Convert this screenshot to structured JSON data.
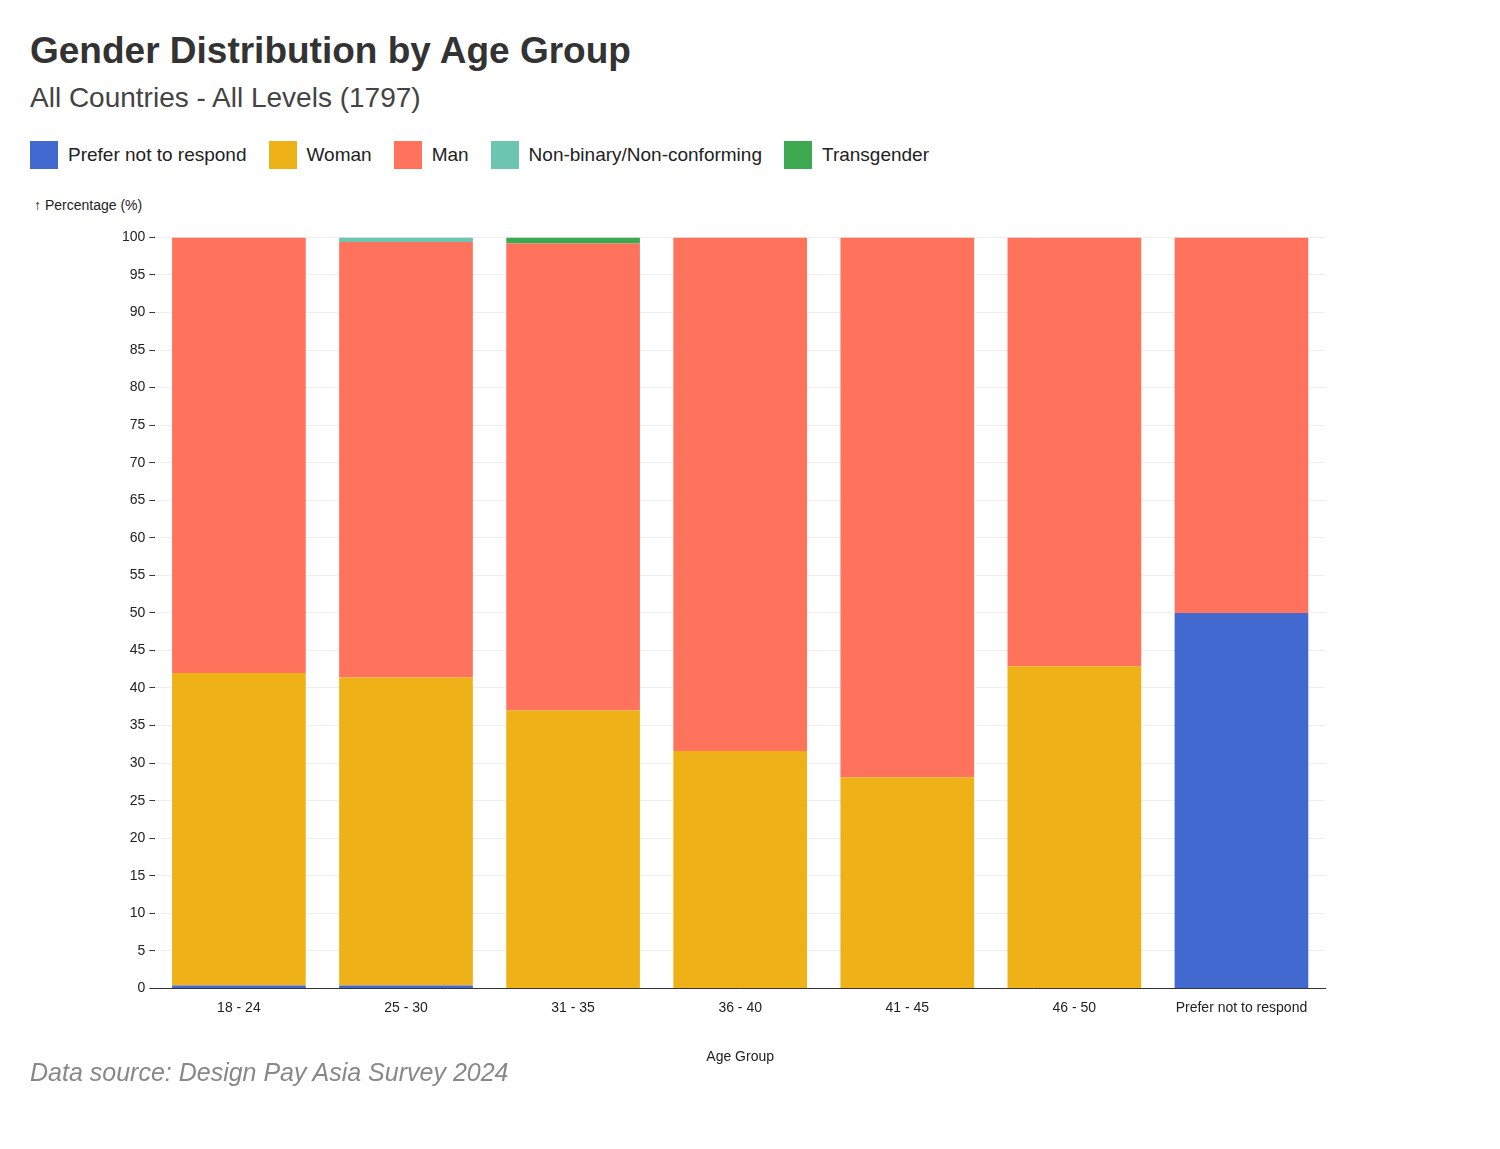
{
  "chart_data": {
    "type": "bar",
    "title": "Gender Distribution by Age Group",
    "subtitle": "All Countries - All Levels (1797)",
    "y_label": "↑ Percentage (%)",
    "x_label": "Age Group",
    "source": "Data source: Design Pay Asia Survey 2024",
    "stacked": true,
    "grid": true,
    "legend": "top-left",
    "categories": [
      "18 - 24",
      "25 - 30",
      "31 - 35",
      "36 - 40",
      "41 - 45",
      "46 - 50",
      "Prefer not to respond"
    ],
    "series": [
      {
        "name": "Prefer not to respond",
        "color": "#4269d0",
        "values": [
          0.4,
          0.4,
          0,
          0,
          0,
          0,
          50
        ]
      },
      {
        "name": "Woman",
        "color": "#efb118",
        "values": [
          41.6,
          41.0,
          37.0,
          31.6,
          28.1,
          42.9,
          0
        ]
      },
      {
        "name": "Man",
        "color": "#ff725c",
        "values": [
          58.0,
          58.0,
          62.2,
          68.4,
          71.9,
          57.1,
          50
        ]
      },
      {
        "name": "Non-binary/Non-conforming",
        "color": "#6cc5b0",
        "values": [
          0,
          0.6,
          0,
          0,
          0,
          0,
          0
        ]
      },
      {
        "name": "Transgender",
        "color": "#3ca951",
        "values": [
          0,
          0,
          0.8,
          0,
          0,
          0,
          0
        ]
      }
    ],
    "ylim": [
      0,
      100
    ],
    "yticks": [
      0,
      5,
      10,
      15,
      20,
      25,
      30,
      35,
      40,
      45,
      50,
      55,
      60,
      65,
      70,
      75,
      80,
      85,
      90,
      95,
      100
    ]
  }
}
